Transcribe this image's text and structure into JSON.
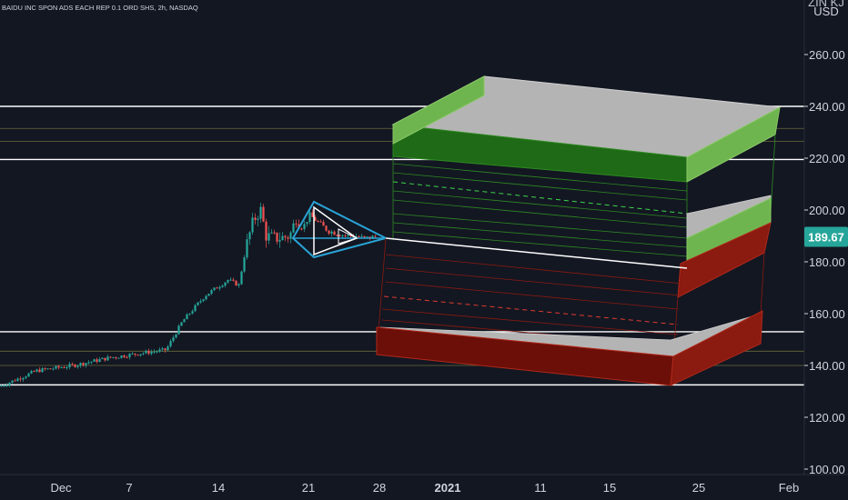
{
  "header": {
    "symbol_text": "BAIDU INC SPON ADS EACH REP 0.1 ORD SHS, 2h, NASDAQ",
    "currency": "USD"
  },
  "colors": {
    "background": "#131722",
    "up_candle": "#26a69a",
    "down_candle": "#ef5350",
    "current_price_tag": "#26a69a",
    "pattern_outline": "#29a3d6",
    "box_green": "#2f7d22",
    "box_green_light": "#6fb54f",
    "box_red": "#8b1a10",
    "box_grey": "#b4b4b4",
    "level_line": "#ffffff"
  },
  "chart_data": {
    "type": "candlestick",
    "title": "BAIDU INC SPON ADS EACH REP 0.1 ORD SHS, 2h, NASDAQ",
    "ylabel": "USD",
    "ylim": [
      100,
      275
    ],
    "y_ticks": [
      "100.00",
      "120.00",
      "140.00",
      "160.00",
      "180.00",
      "200.00",
      "220.00",
      "240.00",
      "260.00"
    ],
    "x_ticks": [
      "Dec",
      "7",
      "14",
      "21",
      "28",
      "2021",
      "11",
      "15",
      "25",
      "Feb"
    ],
    "x_ticks_bold": [
      "2021"
    ],
    "current_price": 189.67,
    "current_price_label": "189.67",
    "horizontal_levels": [
      240.0,
      219.5,
      153.0,
      132.5
    ],
    "faint_levels": [
      231.5,
      226.5,
      145.5,
      140.0
    ],
    "candle_path": [
      {
        "x": 0,
        "close": 132
      },
      {
        "x": 40,
        "close": 138
      },
      {
        "x": 80,
        "close": 140
      },
      {
        "x": 120,
        "close": 143
      },
      {
        "x": 160,
        "close": 145
      },
      {
        "x": 182,
        "close": 146
      },
      {
        "x": 200,
        "close": 157
      },
      {
        "x": 225,
        "close": 167
      },
      {
        "x": 250,
        "close": 173
      },
      {
        "x": 262,
        "close": 171
      },
      {
        "x": 270,
        "close": 186
      },
      {
        "x": 278,
        "close": 196
      },
      {
        "x": 286,
        "close": 200
      },
      {
        "x": 292,
        "close": 190
      },
      {
        "x": 305,
        "close": 189
      },
      {
        "x": 318,
        "close": 190
      },
      {
        "x": 325,
        "close": 197
      },
      {
        "x": 332,
        "close": 193
      },
      {
        "x": 340,
        "close": 198
      },
      {
        "x": 350,
        "close": 195
      },
      {
        "x": 360,
        "close": 192
      },
      {
        "x": 370,
        "close": 191
      },
      {
        "x": 380,
        "close": 190
      },
      {
        "x": 390,
        "close": 190
      },
      {
        "x": 400,
        "close": 189
      },
      {
        "x": 412,
        "close": 189.67
      }
    ]
  }
}
